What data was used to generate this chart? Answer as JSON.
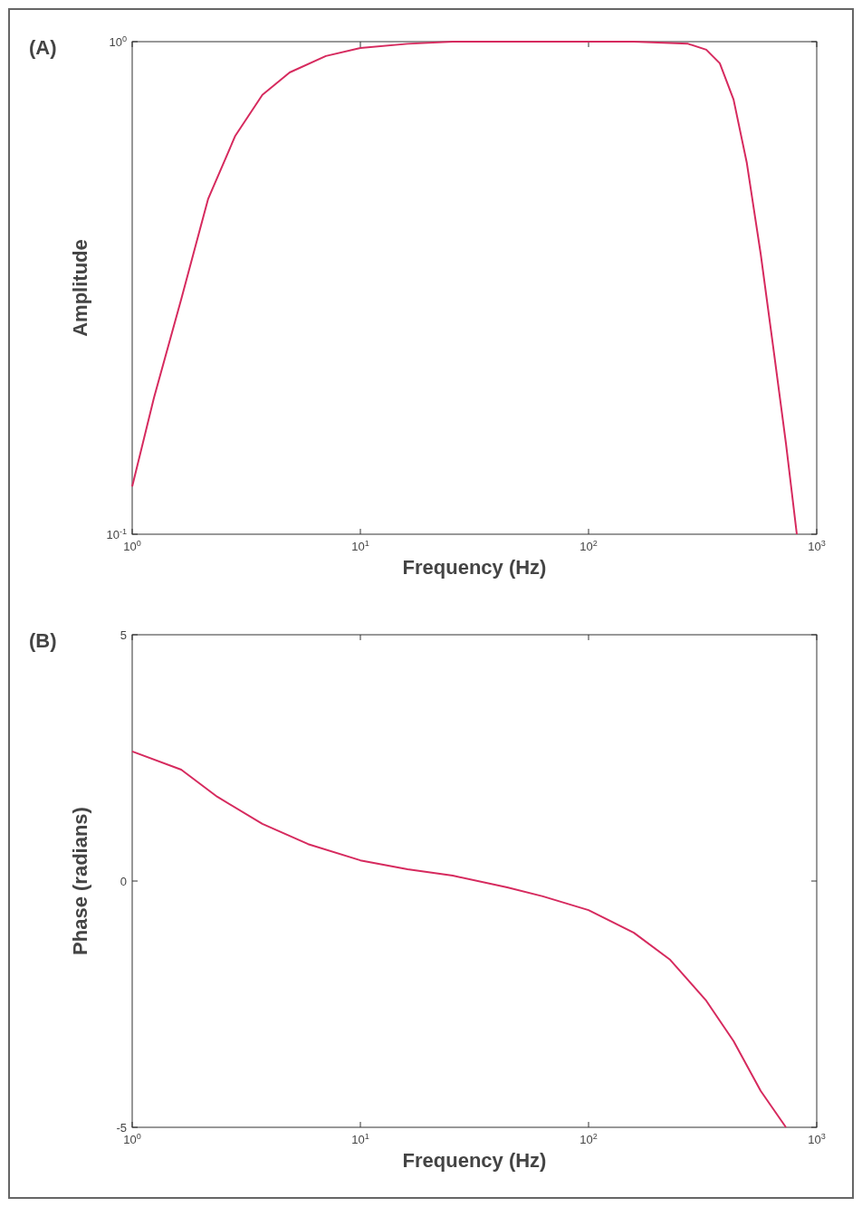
{
  "chart_data": [
    {
      "type": "line",
      "annotations": [
        "(A)"
      ],
      "xlabel": "Frequency (Hz)",
      "ylabel": "Amplitude",
      "log": "xy",
      "xlim": [
        1,
        1000
      ],
      "ylim": [
        0.1,
        1
      ],
      "xticks": [
        {
          "value": 1,
          "label": "10$^{0}$"
        },
        {
          "value": 10,
          "label": "10$^{1}$"
        },
        {
          "value": 100,
          "label": "10$^{2}$"
        },
        {
          "value": 1000,
          "label": "10$^{3}$"
        }
      ],
      "yticks": [
        {
          "value": 0.1,
          "label": "10$^{-1}$"
        },
        {
          "value": 1,
          "label": "10$^{0}$"
        }
      ],
      "x": [
        1,
        1.245,
        1.64,
        2.15,
        2.83,
        3.72,
        4.9,
        7.06,
        10,
        16.1,
        25.4,
        158,
        273,
        328,
        376,
        432,
        494,
        568,
        650,
        733,
        818
      ],
      "series": [
        {
          "color": "#d62a5e",
          "values": [
            0.125,
            0.189,
            0.3,
            0.479,
            0.644,
            0.78,
            0.866,
            0.935,
            0.971,
            0.99,
            1,
            1,
            0.99,
            0.963,
            0.904,
            0.763,
            0.567,
            0.371,
            0.233,
            0.153,
            0.1
          ]
        }
      ]
    },
    {
      "type": "line",
      "annotations": [
        "(B)"
      ],
      "xlabel": "Frequency (Hz)",
      "ylabel": "Phase (radians)",
      "log": "x",
      "xlim": [
        1,
        1000
      ],
      "ylim": [
        -5,
        5
      ],
      "xticks": [
        {
          "value": 1,
          "label": "10$^{0}$"
        },
        {
          "value": 10,
          "label": "10$^{1}$"
        },
        {
          "value": 100,
          "label": "10$^{2}$"
        },
        {
          "value": 1000,
          "label": "10$^{3}$"
        }
      ],
      "yticks": [
        -5,
        0,
        5
      ],
      "x": [
        1,
        1.64,
        2.36,
        3.72,
        5.9,
        10,
        16.1,
        25.4,
        44,
        63,
        100,
        158,
        228,
        328,
        432,
        568,
        733
      ],
      "series": [
        {
          "color": "#d62a5e",
          "values": [
            2.63,
            2.26,
            1.71,
            1.16,
            0.75,
            0.42,
            0.24,
            0.11,
            -0.13,
            -0.31,
            -0.59,
            -1.05,
            -1.6,
            -2.43,
            -3.25,
            -4.26,
            -5
          ]
        }
      ]
    }
  ]
}
